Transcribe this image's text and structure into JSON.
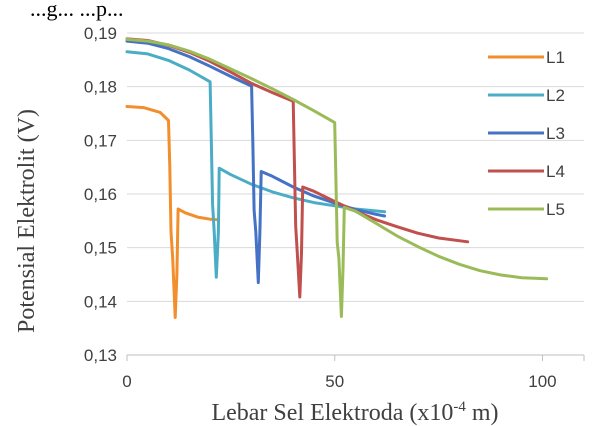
{
  "caption": "...g... ...p...",
  "chart_data": {
    "type": "line",
    "xlabel": "Lebar Sel Elektroda (x10",
    "xlabel_exp": "-4",
    "xlabel_unit": " m)",
    "ylabel": "Potensial Elektrolit (V)",
    "xlim": [
      0,
      110
    ],
    "ylim": [
      0.13,
      0.19
    ],
    "xticks": [
      0,
      50,
      100
    ],
    "xtick_labels": [
      "0",
      "50",
      "100"
    ],
    "yticks": [
      0.13,
      0.14,
      0.15,
      0.16,
      0.17,
      0.18,
      0.19
    ],
    "ytick_labels": [
      "0,13",
      "0,14",
      "0,15",
      "0,16",
      "0,17",
      "0,18",
      "0,19"
    ],
    "grid": "horizontal",
    "legend_position": "right",
    "series": [
      {
        "name": "L1",
        "color": "#F28E2B",
        "points": [
          [
            0,
            0.1763
          ],
          [
            4,
            0.1761
          ],
          [
            8,
            0.1752
          ],
          [
            10,
            0.1737
          ],
          [
            10.3,
            0.165
          ],
          [
            10.6,
            0.153
          ],
          [
            11,
            0.148
          ],
          [
            11.6,
            0.137
          ],
          [
            12,
            0.145
          ],
          [
            12.3,
            0.1572
          ],
          [
            14,
            0.1565
          ],
          [
            17,
            0.1557
          ],
          [
            20,
            0.1553
          ],
          [
            22,
            0.1552
          ]
        ]
      },
      {
        "name": "L2",
        "color": "#4BACC6",
        "points": [
          [
            0,
            0.1865
          ],
          [
            5,
            0.1861
          ],
          [
            10,
            0.1849
          ],
          [
            15,
            0.1831
          ],
          [
            20,
            0.1809
          ],
          [
            20.3,
            0.17
          ],
          [
            20.6,
            0.158
          ],
          [
            21,
            0.153
          ],
          [
            21.5,
            0.1445
          ],
          [
            22,
            0.153
          ],
          [
            22.2,
            0.1648
          ],
          [
            25,
            0.1636
          ],
          [
            30,
            0.1618
          ],
          [
            35,
            0.1604
          ],
          [
            40,
            0.1593
          ],
          [
            45,
            0.1584
          ],
          [
            50,
            0.1578
          ],
          [
            55,
            0.1572
          ],
          [
            62,
            0.1567
          ]
        ]
      },
      {
        "name": "L3",
        "color": "#4472C4",
        "points": [
          [
            0,
            0.1885
          ],
          [
            5,
            0.1881
          ],
          [
            10,
            0.1871
          ],
          [
            15,
            0.1856
          ],
          [
            20,
            0.1838
          ],
          [
            25,
            0.1819
          ],
          [
            30,
            0.1801
          ],
          [
            30.3,
            0.169
          ],
          [
            30.6,
            0.157
          ],
          [
            31,
            0.153
          ],
          [
            31.6,
            0.1435
          ],
          [
            32,
            0.153
          ],
          [
            32.3,
            0.1642
          ],
          [
            35,
            0.1633
          ],
          [
            40,
            0.1613
          ],
          [
            45,
            0.1596
          ],
          [
            50,
            0.1583
          ],
          [
            55,
            0.1571
          ],
          [
            60,
            0.1562
          ],
          [
            62,
            0.1559
          ]
        ]
      },
      {
        "name": "L4",
        "color": "#C0504D",
        "points": [
          [
            0,
            0.1889
          ],
          [
            5,
            0.1886
          ],
          [
            10,
            0.1877
          ],
          [
            15,
            0.1864
          ],
          [
            20,
            0.1847
          ],
          [
            25,
            0.1827
          ],
          [
            30,
            0.1806
          ],
          [
            35,
            0.1789
          ],
          [
            40,
            0.1773
          ],
          [
            40.3,
            0.166
          ],
          [
            40.6,
            0.154
          ],
          [
            41,
            0.149
          ],
          [
            41.6,
            0.1408
          ],
          [
            42,
            0.149
          ],
          [
            42.3,
            0.1613
          ],
          [
            45,
            0.1605
          ],
          [
            50,
            0.1586
          ],
          [
            55,
            0.1568
          ],
          [
            60,
            0.1552
          ],
          [
            65,
            0.1539
          ],
          [
            70,
            0.1527
          ],
          [
            75,
            0.1518
          ],
          [
            82,
            0.1511
          ]
        ]
      },
      {
        "name": "L5",
        "color": "#9BBB59",
        "points": [
          [
            0,
            0.1888
          ],
          [
            5,
            0.1885
          ],
          [
            10,
            0.1878
          ],
          [
            15,
            0.1866
          ],
          [
            20,
            0.1851
          ],
          [
            25,
            0.1833
          ],
          [
            30,
            0.1815
          ],
          [
            35,
            0.1796
          ],
          [
            40,
            0.1776
          ],
          [
            45,
            0.1755
          ],
          [
            50,
            0.1733
          ],
          [
            50.3,
            0.162
          ],
          [
            50.6,
            0.151
          ],
          [
            51,
            0.148
          ],
          [
            51.6,
            0.1372
          ],
          [
            52,
            0.146
          ],
          [
            52.3,
            0.1575
          ],
          [
            55,
            0.1568
          ],
          [
            60,
            0.1545
          ],
          [
            65,
            0.1522
          ],
          [
            70,
            0.1502
          ],
          [
            75,
            0.1484
          ],
          [
            80,
            0.1469
          ],
          [
            85,
            0.1457
          ],
          [
            90,
            0.1449
          ],
          [
            95,
            0.1444
          ],
          [
            101,
            0.1442
          ]
        ]
      }
    ]
  }
}
